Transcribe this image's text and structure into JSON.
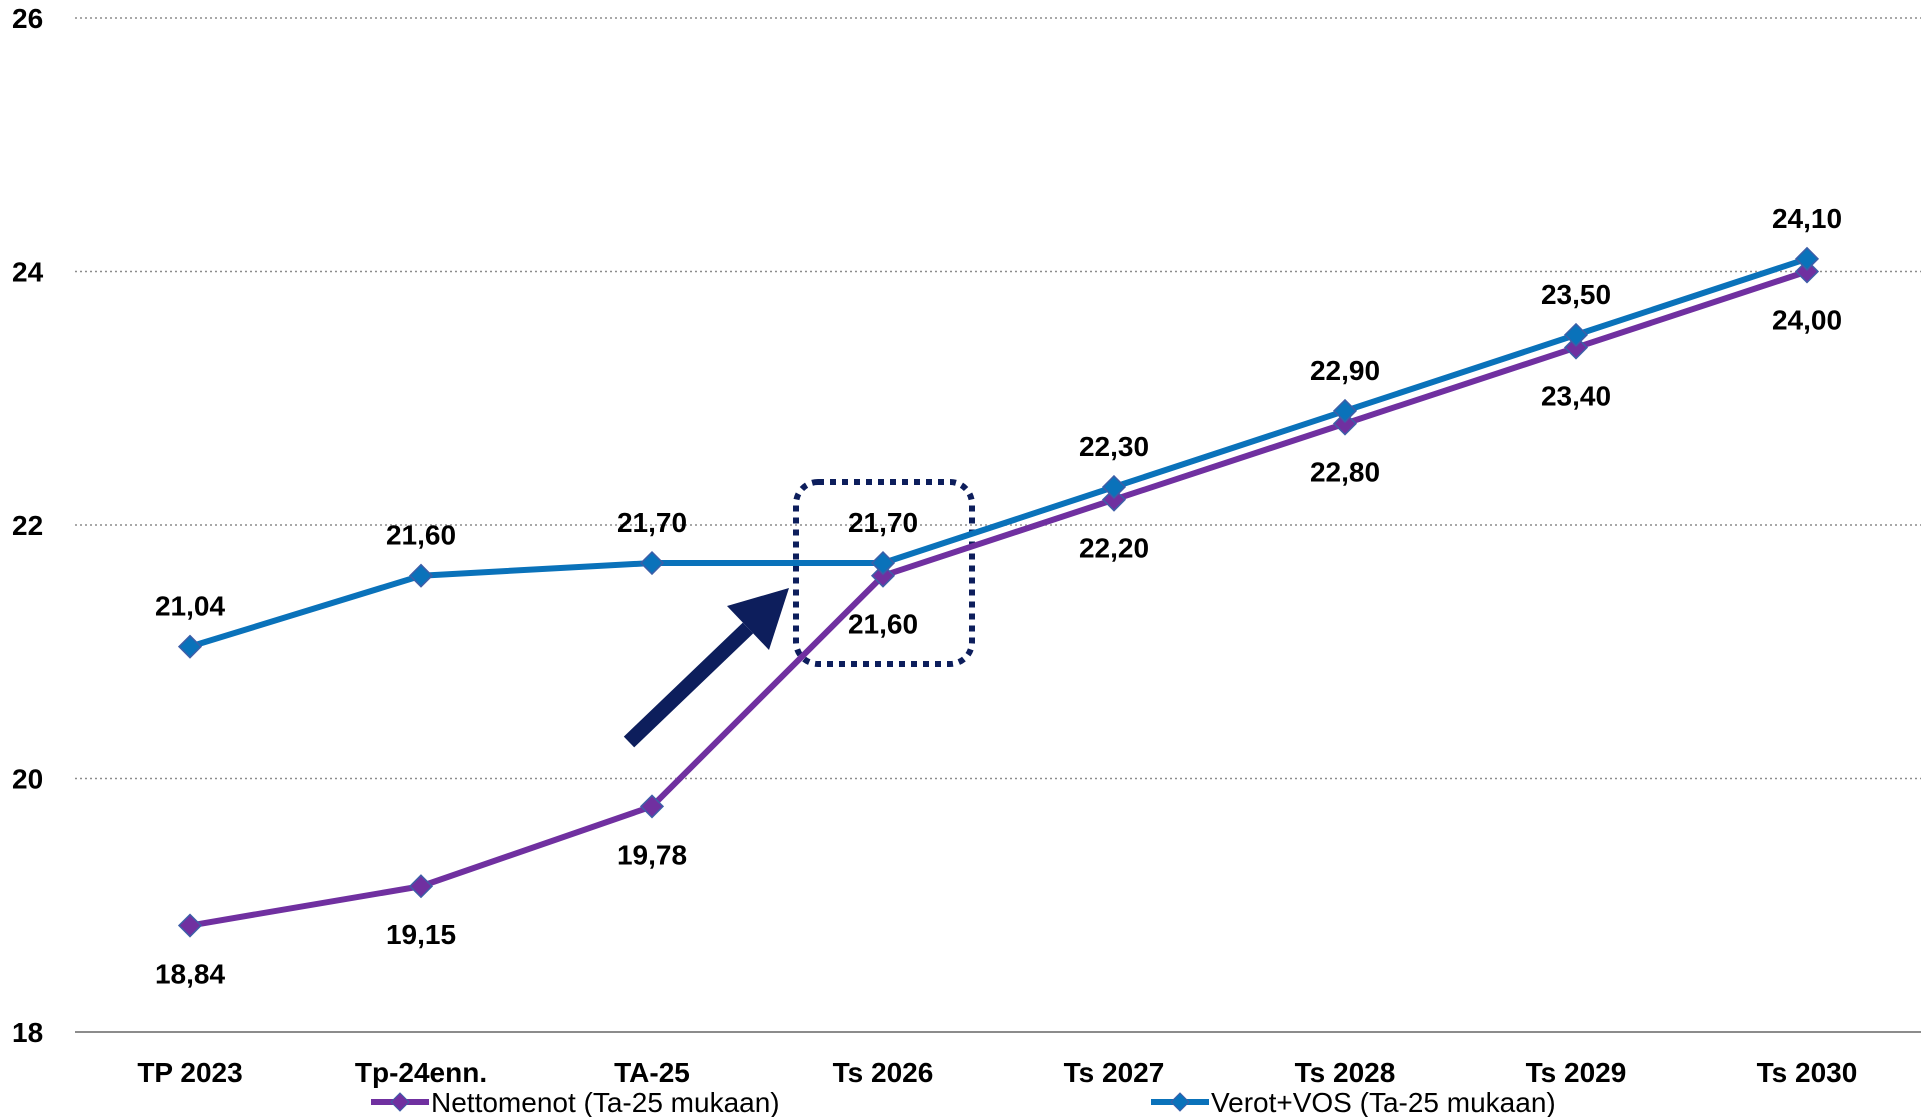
{
  "chart_data": {
    "type": "line",
    "categories": [
      "TP 2023",
      "Tp-24enn.",
      "TA-25",
      "Ts 2026",
      "Ts 2027",
      "Ts 2028",
      "Ts 2029",
      "Ts 2030"
    ],
    "series": [
      {
        "name": "Nettomenot (Ta-25 mukaan)",
        "values": [
          18.84,
          19.15,
          19.78,
          21.6,
          22.2,
          22.8,
          23.4,
          24.0
        ],
        "labels": [
          "18,84",
          "19,15",
          "19,78",
          "21,60",
          "22,20",
          "22,80",
          "23,40",
          "24,00"
        ],
        "color": "#7030a0"
      },
      {
        "name": "Verot+VOS (Ta-25 mukaan)",
        "values": [
          21.04,
          21.6,
          21.7,
          21.7,
          22.3,
          22.9,
          23.5,
          24.1
        ],
        "labels": [
          "21,04",
          "21,60",
          "21,70",
          "21,70",
          "22,30",
          "22,90",
          "23,50",
          "24,10"
        ],
        "color": "#0a72ba"
      }
    ],
    "yticks": [
      "18",
      "20",
      "22",
      "24",
      "26"
    ],
    "ylim": [
      18,
      26
    ],
    "grid": true,
    "legend_position": "bottom",
    "annotation": {
      "highlight_category": "Ts 2026",
      "arrow_color": "#0d1e5c",
      "box_color": "#0d1e5c"
    }
  }
}
